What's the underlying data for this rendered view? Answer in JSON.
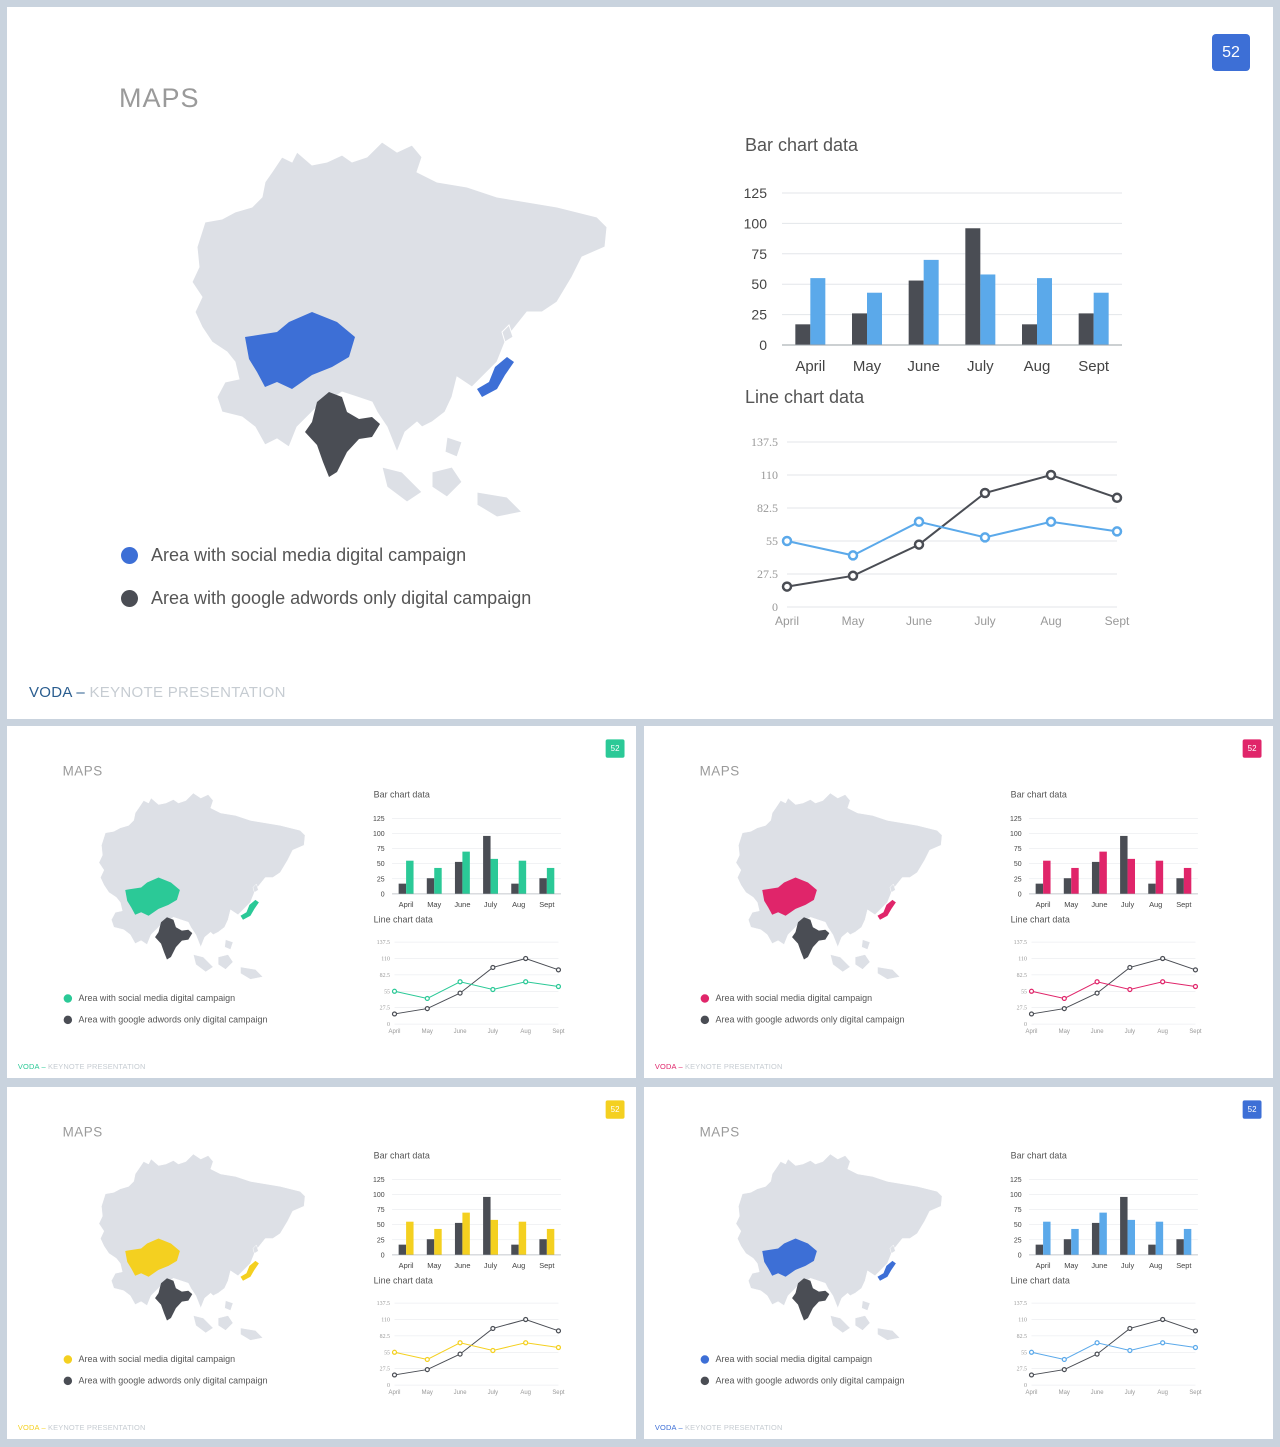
{
  "slides": [
    {
      "id": "main",
      "accent": "#3d6fd6",
      "secondary": "#5ba9ea"
    },
    {
      "id": "green",
      "accent": "#2bc997",
      "secondary": "#2bc997"
    },
    {
      "id": "pink",
      "accent": "#e0256a",
      "secondary": "#e0256a"
    },
    {
      "id": "yellow",
      "accent": "#f4d020",
      "secondary": "#f4d020"
    },
    {
      "id": "blue",
      "accent": "#3d6fd6",
      "secondary": "#5ba9ea"
    }
  ],
  "slide": {
    "page_number": "52",
    "title": "MAPS",
    "legend": {
      "social": "Area with social media digital campaign",
      "adwords": "Area with google adwords only digital campaign"
    },
    "footer": {
      "brand": "VODA",
      "separator": " – ",
      "subtitle": "KEYNOTE PRESENTATION"
    },
    "dark_color": "#4a4d54",
    "map_color": "#dde0e6"
  },
  "chart_data": [
    {
      "type": "bar",
      "title": "Bar chart data",
      "categories": [
        "April",
        "May",
        "June",
        "July",
        "Aug",
        "Sept"
      ],
      "series": [
        {
          "values": [
            17,
            26,
            53,
            96,
            17,
            26
          ]
        },
        {
          "values": [
            55,
            43,
            70,
            58,
            55,
            43
          ]
        }
      ],
      "ylim": [
        0,
        125
      ],
      "yticks": [
        "0",
        "25",
        "50",
        "75",
        "100",
        "125"
      ],
      "grid": true
    },
    {
      "type": "line",
      "title": "Line chart data",
      "categories": [
        "April",
        "May",
        "June",
        "July",
        "Aug",
        "Sept"
      ],
      "series": [
        {
          "values": [
            17,
            26,
            52,
            95,
            110,
            91
          ]
        },
        {
          "values": [
            55,
            43,
            71,
            58,
            71,
            63
          ]
        }
      ],
      "ylim": [
        0,
        137.5
      ],
      "yticks": [
        "0",
        "27.5",
        "55",
        "82.5",
        "110",
        "137.5"
      ],
      "grid": true
    }
  ]
}
